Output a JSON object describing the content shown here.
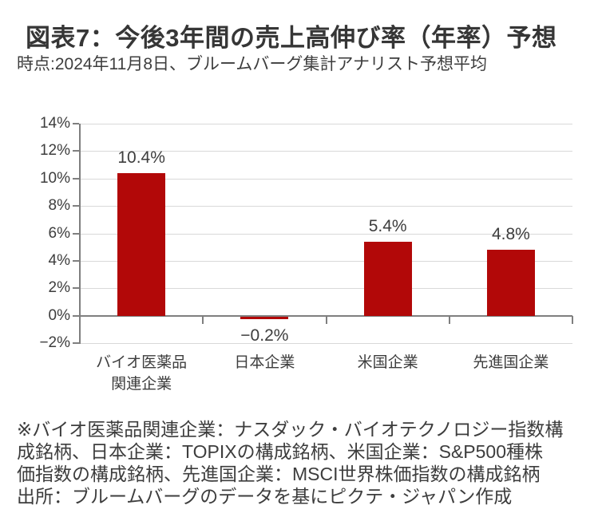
{
  "chart_data": {
    "type": "bar",
    "title": "図表7：今後3年間の売上高伸び率（年率）予想",
    "subtitle": "時点:2024年11月8日、ブルームバーグ集計アナリスト予想平均",
    "categories": [
      "バイオ医薬品関連企業",
      "日本企業",
      "米国企業",
      "先進国企業"
    ],
    "category_lines": [
      [
        "バイオ医薬品",
        "関連企業"
      ],
      [
        "日本企業"
      ],
      [
        "米国企業"
      ],
      [
        "先進国企業"
      ]
    ],
    "values": [
      10.4,
      -0.2,
      5.4,
      4.8
    ],
    "value_labels": [
      "10.4%",
      "−0.2%",
      "5.4%",
      "4.8%"
    ],
    "xlabel": "",
    "ylabel": "",
    "ylim": [
      -2,
      14
    ],
    "yticks": [
      14,
      12,
      10,
      8,
      6,
      4,
      2,
      0,
      -2
    ],
    "ytick_labels": [
      "14%",
      "12%",
      "10%",
      "8%",
      "6%",
      "4%",
      "2%",
      "0%",
      "−2%"
    ],
    "grid": true,
    "legend": "none",
    "bar_color": "#b20808",
    "gridline_color": "#d9d9d9",
    "axis_color": "#7f7f7f",
    "text_color": "#3d3d3d"
  },
  "footnote": {
    "lines": [
      "※バイオ医薬品関連企業：ナスダック・バイオテクノロジー指数構",
      "成銘柄、日本企業：TOPIXの構成銘柄、米国企業：S&P500種株",
      "価指数の構成銘柄、先進国企業：MSCI世界株価指数の構成銘柄",
      "出所：ブルームバーグのデータを基にピクテ・ジャパン作成"
    ]
  }
}
